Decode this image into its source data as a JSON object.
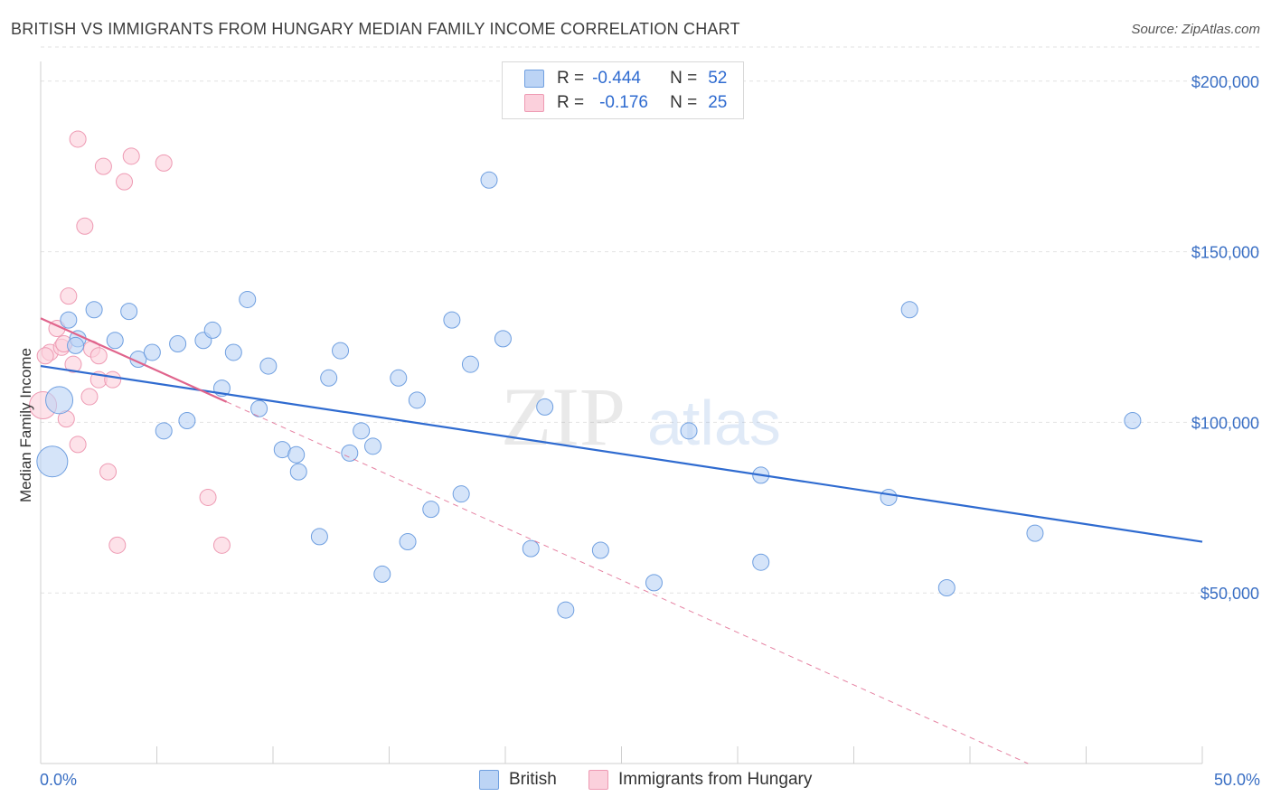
{
  "header": {
    "title": "BRITISH VS IMMIGRANTS FROM HUNGARY MEDIAN FAMILY INCOME CORRELATION CHART",
    "source": "Source: ZipAtlas.com"
  },
  "watermark": {
    "part1": "ZIP",
    "part2": "atlas"
  },
  "legend": {
    "british": {
      "r_label": "R =",
      "r_value": "-0.444",
      "n_label": "N =",
      "n_value": "52"
    },
    "hungary": {
      "r_label": "R =",
      "r_value": "-0.176",
      "n_label": "N =",
      "n_value": "25"
    }
  },
  "colors": {
    "british_fill": "#bcd4f5",
    "british_stroke": "#6f9fe0",
    "british_line": "#2f6bd0",
    "hungary_fill": "#fbd0dc",
    "hungary_stroke": "#ee9ab3",
    "hungary_line": "#e0648c",
    "axis_text": "#3a6fc4",
    "grid": "#e2e2e2"
  },
  "chart_data": {
    "type": "scatter",
    "title": "BRITISH VS IMMIGRANTS FROM HUNGARY MEDIAN FAMILY INCOME CORRELATION CHART",
    "xlabel": "",
    "ylabel": "Median Family Income",
    "xlim": [
      0,
      50
    ],
    "ylim": [
      0,
      210000
    ],
    "x_tick_labels": [
      "0.0%",
      "50.0%"
    ],
    "y_ticks": [
      {
        "value": 50000,
        "label": "$50,000"
      },
      {
        "value": 100000,
        "label": "$100,000"
      },
      {
        "value": 150000,
        "label": "$150,000"
      },
      {
        "value": 200000,
        "label": "$200,000"
      }
    ],
    "legend_position": "top-center",
    "series": [
      {
        "name": "British",
        "r": -0.444,
        "n": 52,
        "trend": {
          "x0": 0,
          "y0": 116500,
          "x1": 50,
          "y1": 65000
        },
        "points": [
          {
            "x": 0.5,
            "y": 88500,
            "s": "xl"
          },
          {
            "x": 0.8,
            "y": 106500,
            "s": "l"
          },
          {
            "x": 1.2,
            "y": 130000
          },
          {
            "x": 2.3,
            "y": 133000
          },
          {
            "x": 3.8,
            "y": 132500
          },
          {
            "x": 1.6,
            "y": 124500
          },
          {
            "x": 3.2,
            "y": 124000
          },
          {
            "x": 1.5,
            "y": 122500
          },
          {
            "x": 4.2,
            "y": 118500
          },
          {
            "x": 4.8,
            "y": 120500
          },
          {
            "x": 5.9,
            "y": 123000
          },
          {
            "x": 7.0,
            "y": 124000
          },
          {
            "x": 7.4,
            "y": 127000
          },
          {
            "x": 8.3,
            "y": 120500
          },
          {
            "x": 8.9,
            "y": 136000
          },
          {
            "x": 9.8,
            "y": 116500
          },
          {
            "x": 7.8,
            "y": 110000
          },
          {
            "x": 9.4,
            "y": 104000
          },
          {
            "x": 5.3,
            "y": 97500
          },
          {
            "x": 6.3,
            "y": 100500
          },
          {
            "x": 10.4,
            "y": 92000
          },
          {
            "x": 11.0,
            "y": 90500
          },
          {
            "x": 11.1,
            "y": 85500
          },
          {
            "x": 12.4,
            "y": 113000
          },
          {
            "x": 12.9,
            "y": 121000
          },
          {
            "x": 13.3,
            "y": 91000
          },
          {
            "x": 13.8,
            "y": 97500
          },
          {
            "x": 14.3,
            "y": 93000
          },
          {
            "x": 15.4,
            "y": 113000
          },
          {
            "x": 16.2,
            "y": 106500
          },
          {
            "x": 17.7,
            "y": 130000
          },
          {
            "x": 18.5,
            "y": 117000
          },
          {
            "x": 19.3,
            "y": 171000
          },
          {
            "x": 19.9,
            "y": 124500
          },
          {
            "x": 21.7,
            "y": 104500
          },
          {
            "x": 12.0,
            "y": 66500
          },
          {
            "x": 14.7,
            "y": 55500
          },
          {
            "x": 15.8,
            "y": 65000
          },
          {
            "x": 16.8,
            "y": 74500
          },
          {
            "x": 18.1,
            "y": 79000
          },
          {
            "x": 21.1,
            "y": 63000
          },
          {
            "x": 22.6,
            "y": 45000
          },
          {
            "x": 24.1,
            "y": 62500
          },
          {
            "x": 26.4,
            "y": 53000
          },
          {
            "x": 27.9,
            "y": 97500
          },
          {
            "x": 31.0,
            "y": 84500
          },
          {
            "x": 31.0,
            "y": 59000
          },
          {
            "x": 37.4,
            "y": 133000
          },
          {
            "x": 36.5,
            "y": 78000
          },
          {
            "x": 39.0,
            "y": 51500
          },
          {
            "x": 42.8,
            "y": 67500
          },
          {
            "x": 47.0,
            "y": 100500
          }
        ]
      },
      {
        "name": "Immigrants from Hungary",
        "r": -0.176,
        "n": 25,
        "trend": {
          "x0": 0,
          "y0": 130500,
          "x1": 8,
          "y1": 106000,
          "dash_x1": 42.5,
          "dash_y1": 0
        },
        "points": [
          {
            "x": 0.1,
            "y": 105000,
            "s": "l"
          },
          {
            "x": 0.4,
            "y": 120500
          },
          {
            "x": 0.7,
            "y": 127500
          },
          {
            "x": 0.9,
            "y": 122000
          },
          {
            "x": 1.0,
            "y": 123000
          },
          {
            "x": 1.1,
            "y": 101000
          },
          {
            "x": 1.2,
            "y": 137000
          },
          {
            "x": 1.4,
            "y": 117000
          },
          {
            "x": 1.6,
            "y": 93500
          },
          {
            "x": 1.9,
            "y": 157500
          },
          {
            "x": 2.1,
            "y": 107500
          },
          {
            "x": 2.2,
            "y": 121500
          },
          {
            "x": 2.5,
            "y": 112500
          },
          {
            "x": 2.5,
            "y": 119500
          },
          {
            "x": 2.7,
            "y": 175000
          },
          {
            "x": 2.9,
            "y": 85500
          },
          {
            "x": 1.6,
            "y": 183000
          },
          {
            "x": 3.1,
            "y": 112500
          },
          {
            "x": 3.3,
            "y": 64000
          },
          {
            "x": 3.6,
            "y": 170500
          },
          {
            "x": 3.9,
            "y": 178000
          },
          {
            "x": 5.3,
            "y": 176000
          },
          {
            "x": 7.2,
            "y": 78000
          },
          {
            "x": 7.8,
            "y": 64000
          },
          {
            "x": 0.2,
            "y": 119500
          }
        ]
      }
    ]
  },
  "bottom_legend": {
    "british_label": "British",
    "hungary_label": "Immigrants from Hungary"
  }
}
